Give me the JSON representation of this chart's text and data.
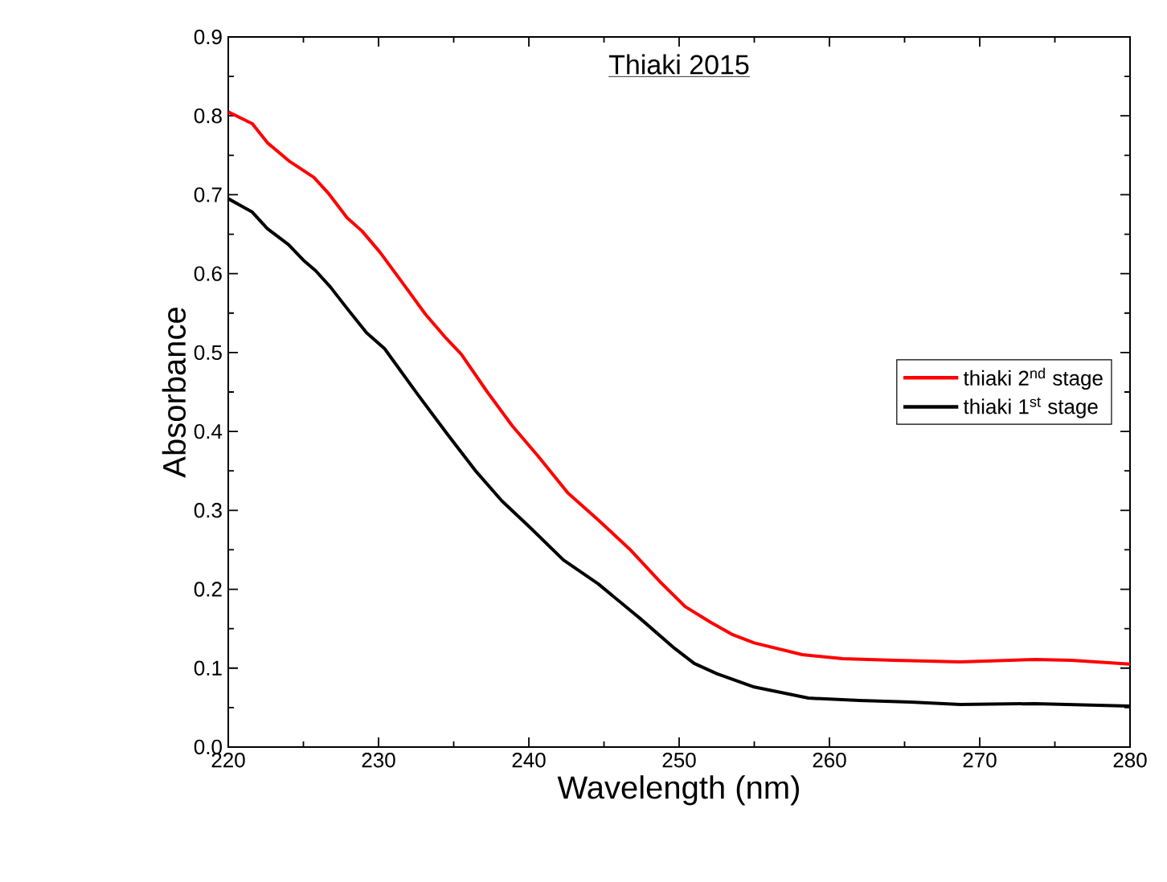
{
  "chart_data": {
    "type": "line",
    "title": "Thiaki 2015",
    "xlabel": "Wavelength (nm)",
    "ylabel": "Absorbance",
    "xlim": [
      220,
      280
    ],
    "xticks": [
      220,
      230,
      240,
      250,
      260,
      270,
      280
    ],
    "ylim": [
      0,
      0.9
    ],
    "yticks": [
      {
        "value": 0,
        "label": "0.0"
      },
      {
        "value": 0.1,
        "label": "0.1"
      },
      {
        "value": 0.2,
        "label": "0.2"
      },
      {
        "value": 0.3,
        "label": "0.3"
      },
      {
        "value": 0.4,
        "label": "0.4"
      },
      {
        "value": 0.5,
        "label": "0.5"
      },
      {
        "value": 0.6,
        "label": "0.6"
      },
      {
        "value": 0.7,
        "label": "0.7"
      },
      {
        "value": 0.8,
        "label": "0.8"
      },
      {
        "value": 0.9,
        "label": "0.9"
      }
    ],
    "grid": false,
    "legend": "right",
    "line_style": "solid",
    "series": [
      {
        "name": "thiaki 2$^{nd}$ stage",
        "color": "#ff0000",
        "x": [
          220,
          221.6,
          222.6,
          224.1,
          225.7,
          226.7,
          227.9,
          228.9,
          230.1,
          231.8,
          233.1,
          234.5,
          235.5,
          237.2,
          238.9,
          240.6,
          242.6,
          244.6,
          246.7,
          248.7,
          250.4,
          252.1,
          253.5,
          255,
          258.2,
          260.9,
          264.3,
          268.7,
          273.7,
          276.1,
          280
        ],
        "values": [
          0.805,
          0.79,
          0.766,
          0.742,
          0.722,
          0.701,
          0.671,
          0.654,
          0.627,
          0.583,
          0.549,
          0.518,
          0.498,
          0.451,
          0.407,
          0.369,
          0.322,
          0.288,
          0.251,
          0.21,
          0.178,
          0.158,
          0.143,
          0.132,
          0.117,
          0.112,
          0.11,
          0.108,
          0.111,
          0.11,
          0.105
        ]
      },
      {
        "name": "thiaki 1$^{st}$ stage",
        "color": "#000000",
        "x": [
          220,
          221.6,
          222.6,
          224,
          225,
          225.8,
          226.8,
          227.9,
          229.2,
          230.4,
          232.6,
          234.6,
          236.5,
          238.2,
          240.1,
          242.3,
          244.6,
          247.4,
          249.7,
          251,
          252.5,
          255,
          258.6,
          262,
          265.4,
          268.7,
          273.7,
          280
        ],
        "values": [
          0.695,
          0.678,
          0.657,
          0.637,
          0.617,
          0.604,
          0.583,
          0.556,
          0.525,
          0.505,
          0.447,
          0.396,
          0.349,
          0.312,
          0.278,
          0.237,
          0.207,
          0.163,
          0.125,
          0.106,
          0.093,
          0.076,
          0.062,
          0.059,
          0.057,
          0.054,
          0.055,
          0.052
        ]
      }
    ]
  }
}
